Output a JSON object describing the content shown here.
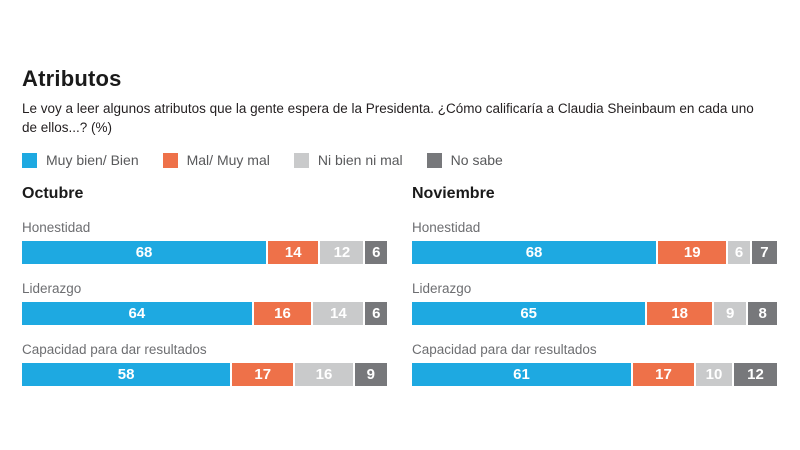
{
  "page": {
    "title": "Atributos",
    "subtitle_lines": [
      "Le voy a leer algunos atributos que la gente espera de la Presidenta. ¿Cómo calificaría a Claudia Sheinbaum en cada uno",
      "de ellos...?  (%)"
    ]
  },
  "legend": [
    {
      "key": "muy-bien-bien",
      "label": "Muy bien/ Bien",
      "color": "#1EA9E1"
    },
    {
      "key": "mal-muy-mal",
      "label": "Mal/ Muy mal",
      "color": "#EE7149"
    },
    {
      "key": "ni-bien-ni-mal",
      "label": "Ni bien ni mal",
      "color": "#C9CACB"
    },
    {
      "key": "no-sabe",
      "label": "No sabe",
      "color": "#77787B"
    }
  ],
  "chart_data": {
    "type": "bar",
    "orientation": "horizontal",
    "stacked": true,
    "unit": "%",
    "value_range": [
      0,
      100
    ],
    "series_labels": [
      "Muy bien/ Bien",
      "Mal/ Muy mal",
      "Ni bien ni mal",
      "No sabe"
    ],
    "panels": [
      {
        "title": "Octubre",
        "categories": [
          "Honestidad",
          "Liderazgo",
          "Capacidad para dar resultados"
        ],
        "series": [
          {
            "name": "Muy bien/ Bien",
            "values": [
              68,
              64,
              58
            ]
          },
          {
            "name": "Mal/ Muy mal",
            "values": [
              14,
              16,
              17
            ]
          },
          {
            "name": "Ni bien ni mal",
            "values": [
              12,
              14,
              16
            ]
          },
          {
            "name": "No sabe",
            "values": [
              6,
              6,
              9
            ]
          }
        ]
      },
      {
        "title": "Noviembre",
        "categories": [
          "Honestidad",
          "Liderazgo",
          "Capacidad para dar resultados"
        ],
        "series": [
          {
            "name": "Muy bien/ Bien",
            "values": [
              68,
              65,
              61
            ]
          },
          {
            "name": "Mal/ Muy mal",
            "values": [
              19,
              18,
              17
            ]
          },
          {
            "name": "Ni bien ni mal",
            "values": [
              6,
              9,
              10
            ]
          },
          {
            "name": "No sabe",
            "values": [
              7,
              8,
              12
            ]
          }
        ]
      }
    ]
  }
}
